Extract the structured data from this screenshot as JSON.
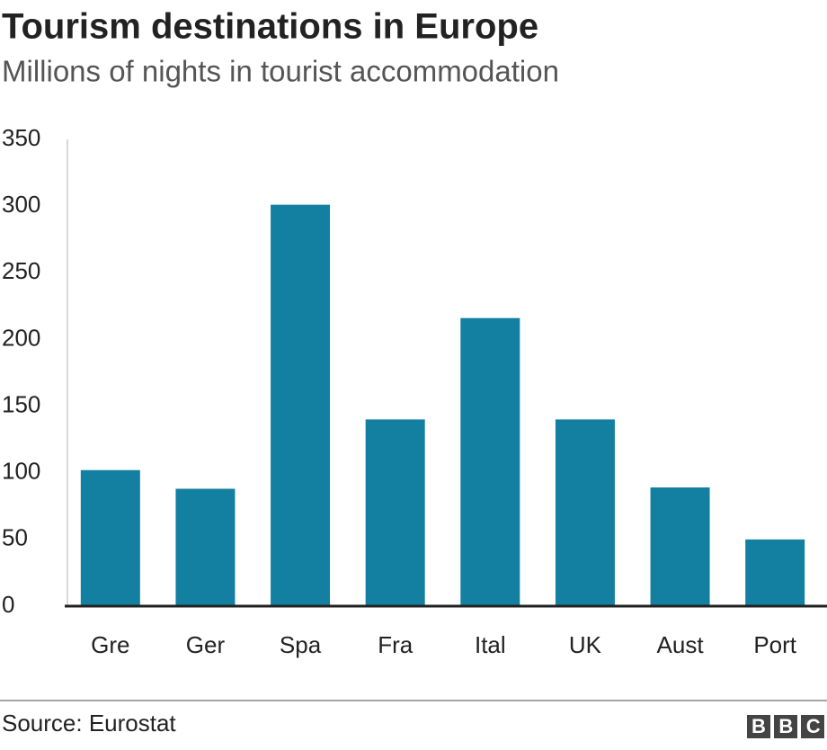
{
  "chart_data": {
    "type": "bar",
    "title": "Tourism destinations in Europe",
    "subtitle": "Millions of nights in tourist accommodation",
    "categories": [
      "Gre",
      "Ger",
      "Spa",
      "Fra",
      "Ital",
      "UK",
      "Aust",
      "Port"
    ],
    "values": [
      102,
      88,
      301,
      140,
      216,
      140,
      89,
      50
    ],
    "color": "#1380a1",
    "ylim": [
      0,
      350
    ],
    "yticks": [
      0,
      50,
      100,
      150,
      200,
      250,
      300,
      350
    ],
    "grid": false,
    "source": "Source: Eurostat",
    "logo": "BBC"
  }
}
